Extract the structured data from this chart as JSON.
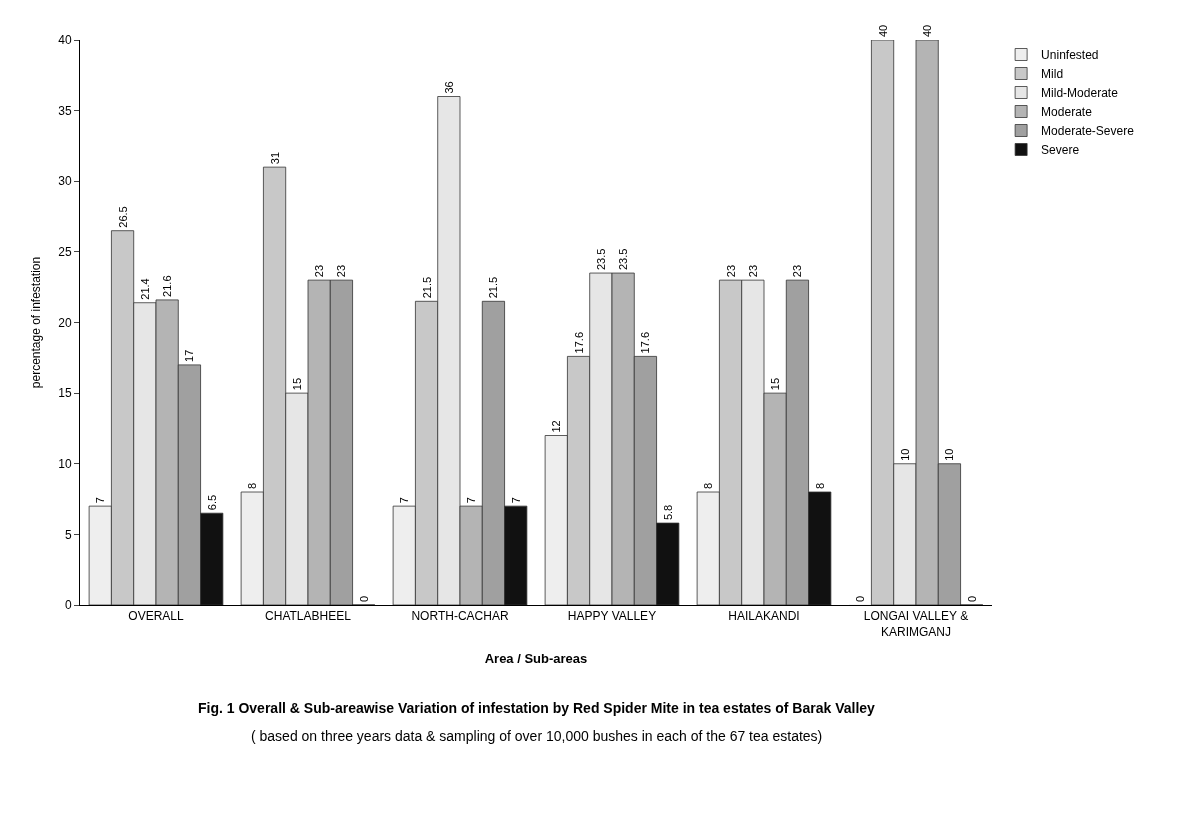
{
  "chart_data": {
    "type": "bar",
    "title": "Fig. 1 Overall & Sub-areawise Variation of infestation by Red Spider Mite in tea estates of Barak Valley",
    "subtitle": "( based on three years data & sampling of over 10,000 bushes in each of the 67 tea estates)",
    "xlabel": "Area / Sub-areas",
    "ylabel": "percentage of infestation",
    "categories": [
      "OVERALL",
      "CHATLABHEEL",
      "NORTH-CACHAR",
      "HAPPY VALLEY",
      "HAILAKANDI",
      "LONGAI VALLEY &\nKARIMGANJ"
    ],
    "series": [
      {
        "name": "Uninfested",
        "color": "#eeeeee",
        "values": [
          7,
          8,
          7,
          12,
          8,
          0
        ]
      },
      {
        "name": "Mild",
        "color": "#c8c8c8",
        "values": [
          26.5,
          31,
          21.5,
          17.6,
          23,
          40
        ]
      },
      {
        "name": "Mild-Moderate",
        "color": "#e6e6e6",
        "values": [
          21.4,
          15,
          36,
          23.5,
          23,
          10
        ]
      },
      {
        "name": "Moderate",
        "color": "#b4b4b4",
        "values": [
          21.6,
          23,
          7,
          23.5,
          15,
          40
        ]
      },
      {
        "name": "Moderate-Severe",
        "color": "#a0a0a0",
        "values": [
          17,
          23,
          21.5,
          17.6,
          23,
          10
        ]
      },
      {
        "name": "Severe",
        "color": "#111111",
        "values": [
          6.5,
          0,
          7,
          5.8,
          8,
          0
        ]
      }
    ],
    "ylim": [
      0,
      40
    ],
    "yticks": [
      0,
      5,
      10,
      15,
      20,
      25,
      30,
      35,
      40
    ],
    "data_labels": true,
    "legend": "top right"
  }
}
